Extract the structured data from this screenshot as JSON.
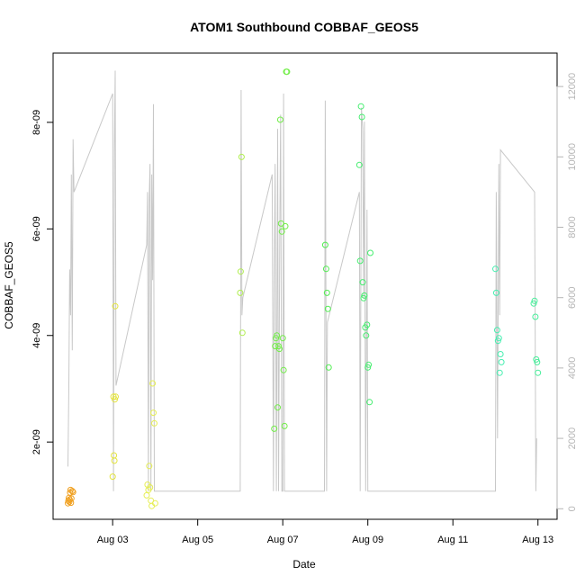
{
  "chart_data": {
    "type": "scatter",
    "title": "ATOM1 Southbound COBBAF_GEOS5",
    "xlabel": "Date",
    "ylabel": "COBBAF_GEOS5",
    "x_ticks": [
      {
        "day": 3,
        "label": "Aug 03"
      },
      {
        "day": 5,
        "label": "Aug 05"
      },
      {
        "day": 7,
        "label": "Aug 07"
      },
      {
        "day": 9,
        "label": "Aug 09"
      },
      {
        "day": 11,
        "label": "Aug 11"
      },
      {
        "day": 13,
        "label": "Aug 13"
      }
    ],
    "y_ticks": [
      {
        "value": 2e-09,
        "label": "2e-09"
      },
      {
        "value": 4e-09,
        "label": "4e-09"
      },
      {
        "value": 6e-09,
        "label": "6e-09"
      },
      {
        "value": 8e-09,
        "label": "8e-09"
      }
    ],
    "y2_ticks": [
      {
        "value": 0,
        "label": "0"
      },
      {
        "value": 2000,
        "label": "2000"
      },
      {
        "value": 4000,
        "label": "4000"
      },
      {
        "value": 6000,
        "label": "6000"
      },
      {
        "value": 8000,
        "label": "8000"
      },
      {
        "value": 10000,
        "label": "10000"
      },
      {
        "value": 12000,
        "label": "12000"
      }
    ],
    "xlim": [
      1.6,
      13.45
    ],
    "ylim": [
      5.5e-10,
      9.3e-09
    ],
    "y2lim": [
      -300,
      12950
    ],
    "grid": false,
    "legend": "none",
    "line_color": "#c8c8c8",
    "altitude_line": [
      [
        1.95,
        1200
      ],
      [
        1.97,
        3500
      ],
      [
        1.99,
        6800
      ],
      [
        2.01,
        5500
      ],
      [
        2.03,
        9500
      ],
      [
        2.05,
        4500
      ],
      [
        2.07,
        10500
      ],
      [
        2.09,
        9000
      ],
      [
        3.0,
        11800
      ],
      [
        3.02,
        500
      ],
      [
        3.04,
        10200
      ],
      [
        3.06,
        12450
      ],
      [
        3.08,
        3500
      ],
      [
        3.8,
        7500
      ],
      [
        3.82,
        9000
      ],
      [
        3.84,
        500
      ],
      [
        3.86,
        8800
      ],
      [
        3.88,
        9800
      ],
      [
        3.9,
        500
      ],
      [
        3.92,
        9500
      ],
      [
        3.94,
        6500
      ],
      [
        3.96,
        11500
      ],
      [
        3.98,
        500
      ],
      [
        6.0,
        500
      ],
      [
        6.02,
        11900
      ],
      [
        6.04,
        5500
      ],
      [
        6.06,
        6000
      ],
      [
        6.75,
        9500
      ],
      [
        6.78,
        500
      ],
      [
        6.8,
        6500
      ],
      [
        6.82,
        9800
      ],
      [
        6.85,
        500
      ],
      [
        6.88,
        10800
      ],
      [
        6.9,
        500
      ],
      [
        6.93,
        8000
      ],
      [
        6.95,
        11200
      ],
      [
        6.98,
        500
      ],
      [
        7.0,
        500
      ],
      [
        7.02,
        11800
      ],
      [
        7.04,
        500
      ],
      [
        7.98,
        500
      ],
      [
        8.0,
        11600
      ],
      [
        8.03,
        500
      ],
      [
        8.05,
        5300
      ],
      [
        8.8,
        9000
      ],
      [
        8.82,
        500
      ],
      [
        8.85,
        11400
      ],
      [
        8.88,
        10800
      ],
      [
        8.9,
        6000
      ],
      [
        8.92,
        11000
      ],
      [
        8.95,
        500
      ],
      [
        8.98,
        8500
      ],
      [
        9.0,
        500
      ],
      [
        12.0,
        500
      ],
      [
        12.02,
        9000
      ],
      [
        12.05,
        2000
      ],
      [
        12.08,
        9800
      ],
      [
        12.1,
        5500
      ],
      [
        12.12,
        10200
      ],
      [
        12.92,
        9000
      ],
      [
        12.95,
        500
      ],
      [
        12.97,
        2000
      ]
    ],
    "series": [
      {
        "color": "#f0a020",
        "x": [
          1.95,
          1.96,
          1.97,
          1.98,
          1.99,
          2.0,
          2.01,
          2.02,
          2.03,
          2.05,
          2.07
        ],
        "y": [
          8.5e-10,
          9e-10,
          9.5e-10,
          8.8e-10,
          9.2e-10,
          1.05e-09,
          1.1e-09,
          8.6e-10,
          9.4e-10,
          1.08e-09,
          1.06e-09
        ]
      },
      {
        "color": "#e4e43c",
        "x": [
          3.0,
          3.02,
          3.03,
          3.04,
          3.05,
          3.06,
          3.07
        ],
        "y": [
          1.35e-09,
          2.85e-09,
          1.75e-09,
          1.65e-09,
          2.8e-09,
          4.55e-09,
          2.85e-09
        ]
      },
      {
        "color": "#e6ee55",
        "x": [
          3.8,
          3.82,
          3.84,
          3.86,
          3.88,
          3.9,
          3.92,
          3.94,
          3.96,
          3.98,
          4.0
        ],
        "y": [
          1e-09,
          1.2e-09,
          1.1e-09,
          1.55e-09,
          1.15e-09,
          9e-10,
          8e-10,
          3.1e-09,
          2.55e-09,
          2.35e-09,
          8.5e-10
        ]
      },
      {
        "color": "#b0ee50",
        "x": [
          6.0,
          6.01,
          6.03,
          6.05
        ],
        "y": [
          4.8e-09,
          5.2e-09,
          7.35e-09,
          4.05e-09
        ]
      },
      {
        "color": "#72ee48",
        "x": [
          6.8,
          6.82,
          6.84,
          6.86,
          6.88,
          6.9,
          6.92,
          6.94,
          6.96,
          6.98,
          7.0,
          7.02,
          7.04,
          7.06,
          7.08,
          7.1
        ],
        "y": [
          2.25e-09,
          3.8e-09,
          3.95e-09,
          4e-09,
          2.65e-09,
          3.8e-09,
          3.75e-09,
          8.05e-09,
          6.1e-09,
          5.95e-09,
          3.95e-09,
          3.35e-09,
          2.3e-09,
          6.05e-09,
          8.95e-09,
          8.95e-09
        ]
      },
      {
        "color": "#50ee50",
        "x": [
          8.0,
          8.02,
          8.04,
          8.06,
          8.08
        ],
        "y": [
          5.7e-09,
          5.25e-09,
          4.8e-09,
          4.5e-09,
          3.4e-09
        ]
      },
      {
        "color": "#46ee70",
        "x": [
          8.8,
          8.82,
          8.84,
          8.86,
          8.88,
          8.9,
          8.92,
          8.94,
          8.96,
          8.98,
          9.0,
          9.02,
          9.04,
          9.06
        ],
        "y": [
          7.2e-09,
          5.4e-09,
          8.3e-09,
          8.1e-09,
          5e-09,
          4.7e-09,
          4.75e-09,
          4.15e-09,
          4e-09,
          4.2e-09,
          3.4e-09,
          3.45e-09,
          2.75e-09,
          5.55e-09
        ]
      },
      {
        "color": "#46eeb0",
        "x": [
          12.0,
          12.02,
          12.04,
          12.06,
          12.08,
          12.1,
          12.12,
          12.14
        ],
        "y": [
          5.25e-09,
          4.8e-09,
          4.1e-09,
          3.9e-09,
          3.95e-09,
          3.3e-09,
          3.65e-09,
          3.5e-09
        ]
      },
      {
        "color": "#46ee9a",
        "x": [
          12.9,
          12.92,
          12.94,
          12.96,
          12.98,
          13.0
        ],
        "y": [
          4.6e-09,
          4.65e-09,
          4.35e-09,
          3.55e-09,
          3.5e-09,
          3.3e-09
        ]
      }
    ]
  }
}
